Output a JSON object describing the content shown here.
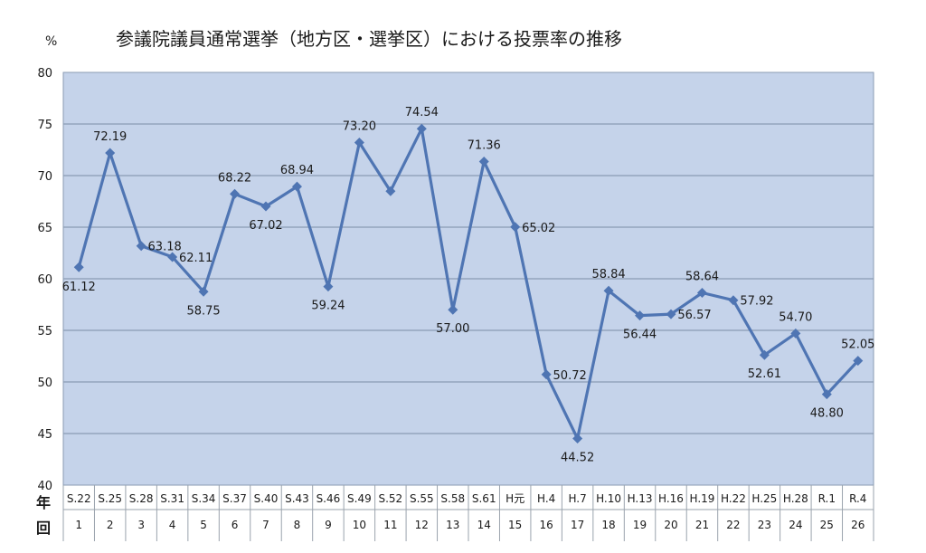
{
  "chart_data": {
    "type": "line",
    "title": "参議院議員通常選挙（地方区・選挙区）における投票率の推移",
    "ylabel": "%",
    "ylim": [
      40,
      80
    ],
    "yticks": [
      40,
      45,
      50,
      55,
      60,
      65,
      70,
      75,
      80
    ],
    "grid": true,
    "row_labels": {
      "year": "年",
      "round": "回"
    },
    "categories": [
      "S.22",
      "S.25",
      "S.28",
      "S.31",
      "S.34",
      "S.37",
      "S.40",
      "S.43",
      "S.46",
      "S.49",
      "S.52",
      "S.55",
      "S.58",
      "S.61",
      "H元",
      "H.4",
      "H.7",
      "H.10",
      "H.13",
      "H.16",
      "H.19",
      "H.22",
      "H.25",
      "H.28",
      "R.1",
      "R.4"
    ],
    "rounds": [
      "1",
      "2",
      "3",
      "4",
      "5",
      "6",
      "7",
      "8",
      "9",
      "10",
      "11",
      "12",
      "13",
      "14",
      "15",
      "16",
      "17",
      "18",
      "19",
      "20",
      "21",
      "22",
      "23",
      "24",
      "25",
      "26"
    ],
    "series": [
      {
        "values": [
          61.12,
          72.19,
          63.18,
          62.11,
          58.75,
          68.22,
          67.02,
          68.94,
          59.24,
          73.2,
          68.49,
          74.54,
          57.0,
          71.36,
          65.02,
          50.72,
          44.52,
          58.84,
          56.44,
          56.57,
          58.64,
          57.92,
          52.61,
          54.7,
          48.8,
          52.05
        ],
        "labels": [
          "61.12",
          "72.19",
          "63.18",
          "62.11",
          "58.75",
          "68.22",
          "67.02",
          "68.94",
          "59.24",
          "73.20",
          "",
          "74.54",
          "57.00",
          "71.36",
          "65.02",
          "50.72",
          "44.52",
          "58.84",
          "56.44",
          "56.57",
          "58.64",
          "57.92",
          "52.61",
          "54.70",
          "48.80",
          "52.05"
        ],
        "color": "#4f75b3"
      }
    ],
    "colors": {
      "plot_bg": "#c5d3ea",
      "grid": "#8a9bb3",
      "line": "#4f75b3",
      "text": "#1a1a1a"
    }
  }
}
